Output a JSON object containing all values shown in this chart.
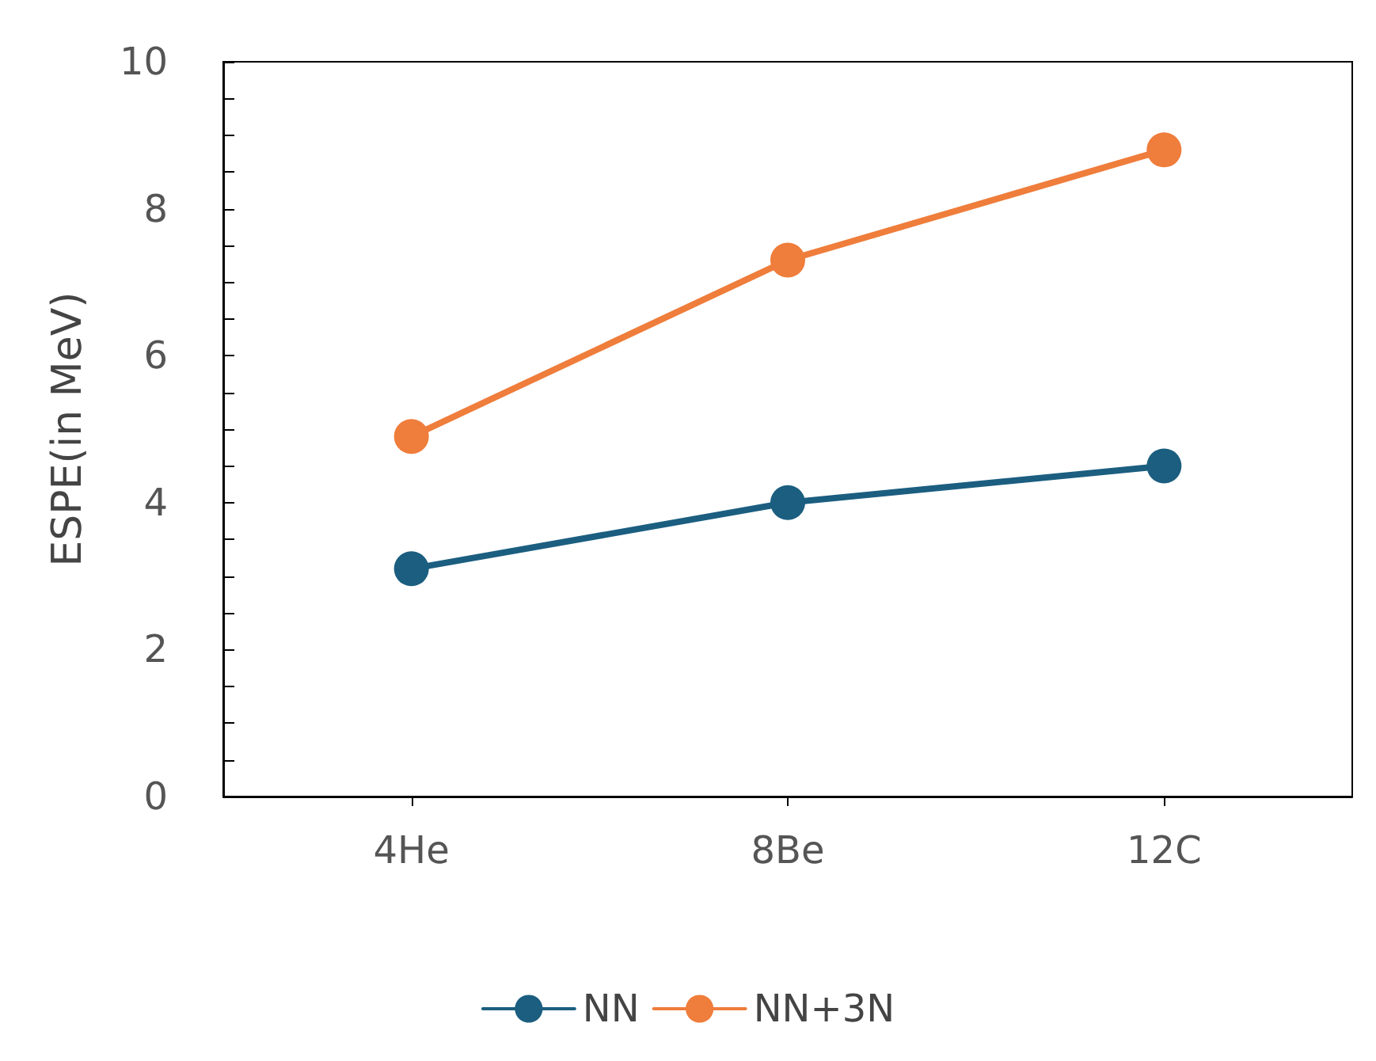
{
  "chart_data": {
    "type": "line",
    "ylabel": "ESPE(in MeV)",
    "categories": [
      "4He",
      "8Be",
      "12C"
    ],
    "series": [
      {
        "name": "NN",
        "color": "#1b5e80",
        "values": [
          3.1,
          4.0,
          4.5
        ]
      },
      {
        "name": "NN+3N",
        "color": "#ef7d3b",
        "values": [
          4.9,
          7.3,
          8.8
        ]
      }
    ],
    "ylim": [
      0,
      10
    ],
    "yticks": [
      0,
      2,
      4,
      6,
      8,
      10
    ],
    "grid": false,
    "legend": "bottom",
    "marker": "circle",
    "line_style": "solid"
  }
}
